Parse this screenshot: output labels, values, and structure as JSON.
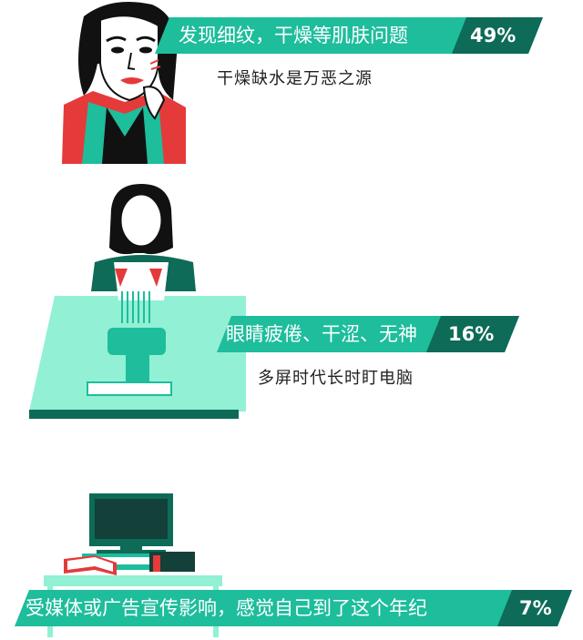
{
  "colors": {
    "teal": "#1ebd9c",
    "dark_teal": "#0d6b58",
    "mint": "#92f0d4",
    "red": "#e53a3a",
    "black": "#111111"
  },
  "sections": [
    {
      "banner_text": "发现细纹，干燥等肌肤问题",
      "percent": "49%",
      "subtitle": "干燥缺水是万恶之源",
      "illustration": "woman-portrait-icon"
    },
    {
      "banner_text": "眼睛疲倦、干涩、无神",
      "percent": "16%",
      "subtitle": "多屏时代长时盯电脑",
      "illustration": "woman-at-computer-icon"
    },
    {
      "banner_text": "受媒体或广告宣传影响，感觉自己到了这个年纪",
      "percent": "7%",
      "subtitle": "",
      "illustration": "tv-and-books-icon"
    }
  ]
}
